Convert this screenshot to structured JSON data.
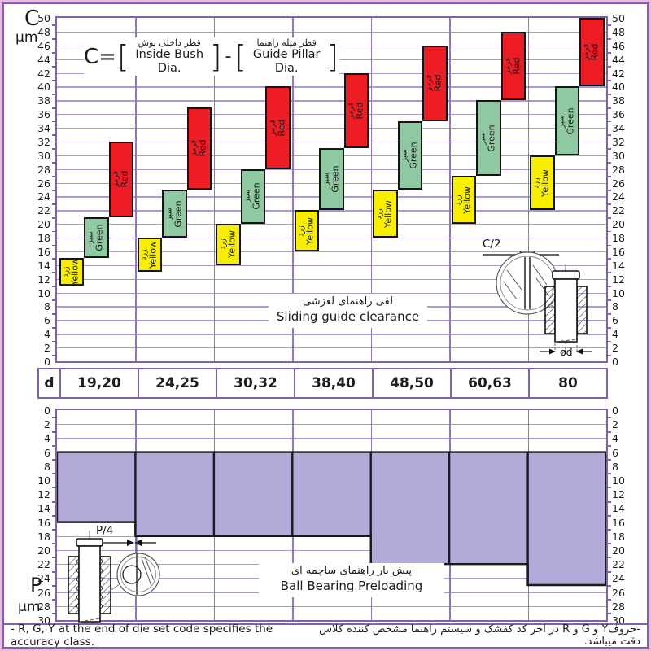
{
  "top_chart": {
    "y_axis_name": "C",
    "y_axis_unit": "µm",
    "formula": {
      "lhs": "C=",
      "open_bracket": "[",
      "close_bracket": "]",
      "minus": "-",
      "term1_fa": "قطر داخلی بوش",
      "term1_en": "Inside Bush Dia.",
      "term2_fa": "قطر میله راهنما",
      "term2_en": "Guide Pillar Dia."
    },
    "note_fa": "لقی راهنمای لغزشی",
    "note_en": "Sliding guide clearance",
    "detail_dim_label": "C/2",
    "pillar_dia_label": "ød"
  },
  "d_row": {
    "header": "d",
    "values": [
      "19,20",
      "24,25",
      "30,32",
      "38,40",
      "48,50",
      "60,63",
      "80"
    ]
  },
  "bottom_chart": {
    "y_axis_name": "P",
    "y_axis_unit": "µm",
    "note_fa": "پیش بار راهنمای ساچمه ای",
    "note_en": "Ball Bearing Preloading",
    "detail_dim_label": "P/4"
  },
  "footer": {
    "en": "- R, G, Y at the end of die set code specifies the accuracy class.",
    "fa": "-حروفY و G و R در آخر کد کفشک و سیستم راهنما مشخص کننده کلاس دقت میباشد."
  },
  "colors": {
    "yellow": "#f8ee00",
    "green": "#8fc9a1",
    "red": "#ee1c25",
    "preload_fill": "#b2abda",
    "grid": "#ab99d6",
    "axis_frame": "#7e62ad",
    "page_border_outer": "#f2b9d5",
    "bar_border": "#151515"
  },
  "chart_data": [
    {
      "type": "bar",
      "subtype": "floating-range-bars",
      "title_fa": "لقی راهنمای لغزشی",
      "title_en": "Sliding guide clearance",
      "formula": "C = [Inside Bush Dia.] - [Guide Pillar Dia.]",
      "xlabel": "d (guide pillar diameter, mm)",
      "ylabel": "C (µm)",
      "ylim": [
        0,
        50
      ],
      "ytick_step": 2,
      "grid": true,
      "categories": [
        "19,20",
        "24,25",
        "30,32",
        "38,40",
        "48,50",
        "60,63",
        "80"
      ],
      "series": [
        {
          "name_en": "Yellow",
          "name_fa": "زرد",
          "color": "#f8ee00",
          "ranges": [
            [
              11,
              15
            ],
            [
              13,
              18
            ],
            [
              14,
              20
            ],
            [
              16,
              22
            ],
            [
              18,
              25
            ],
            [
              20,
              27
            ],
            [
              22,
              30
            ]
          ]
        },
        {
          "name_en": "Green",
          "name_fa": "سبز",
          "color": "#8fc9a1",
          "ranges": [
            [
              15,
              21
            ],
            [
              18,
              25
            ],
            [
              20,
              28
            ],
            [
              22,
              31
            ],
            [
              25,
              35
            ],
            [
              27,
              38
            ],
            [
              30,
              40
            ]
          ]
        },
        {
          "name_en": "Red",
          "name_fa": "قرمز",
          "color": "#ee1c25",
          "ranges": [
            [
              21,
              32
            ],
            [
              25,
              37
            ],
            [
              28,
              40
            ],
            [
              31,
              42
            ],
            [
              35,
              46
            ],
            [
              38,
              48
            ],
            [
              40,
              50
            ]
          ]
        }
      ]
    },
    {
      "type": "area",
      "subtype": "stepped-range-band",
      "title_fa": "پیش بار راهنمای ساچمه ای",
      "title_en": "Ball Bearing Preloading",
      "ylabel": "P (µm)",
      "ylim": [
        0,
        30
      ],
      "y_axis_inverted": true,
      "ytick_step": 2,
      "grid": true,
      "categories": [
        "19,20",
        "24,25",
        "30,32",
        "38,40",
        "48,50",
        "60,63",
        "80"
      ],
      "color": "#b2abda",
      "ranges": [
        [
          6,
          16
        ],
        [
          6,
          18
        ],
        [
          6,
          18
        ],
        [
          6,
          18
        ],
        [
          6,
          22
        ],
        [
          6,
          22
        ],
        [
          6,
          25
        ]
      ]
    }
  ]
}
